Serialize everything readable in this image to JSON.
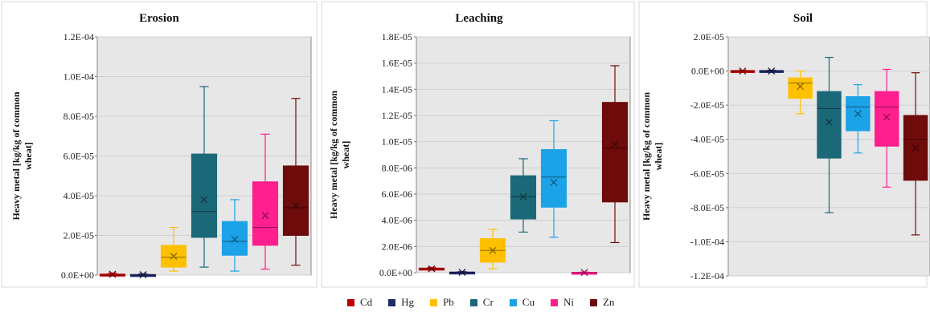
{
  "chart_data": [
    {
      "type": "box",
      "title": "Erosion",
      "ylabel": "Heavy metal [kg/kg of common wheat]",
      "ylim": [
        0,
        0.00012
      ],
      "yticks": [
        0,
        2e-05,
        4e-05,
        6e-05,
        8e-05,
        0.0001,
        0.00012
      ],
      "ytick_labels": [
        "0.0E+00",
        "2.0E-05",
        "4.0E-05",
        "6.0E-05",
        "8.0E-05",
        "1.0E-04",
        "1.2E-04"
      ],
      "grid": true,
      "series": [
        {
          "name": "Cd",
          "min": 0,
          "q1": 0,
          "median": 0,
          "q3": 5e-07,
          "max": 1e-06,
          "mean": 4e-07
        },
        {
          "name": "Hg",
          "min": 0,
          "q1": 0,
          "median": 0,
          "q3": 3e-07,
          "max": 6e-07,
          "mean": 2e-07
        },
        {
          "name": "Pb",
          "min": 2e-06,
          "q1": 4e-06,
          "median": 9e-06,
          "q3": 1.5e-05,
          "max": 2.4e-05,
          "mean": 9.5e-06
        },
        {
          "name": "Cr",
          "min": 4e-06,
          "q1": 1.9e-05,
          "median": 3.2e-05,
          "q3": 6.1e-05,
          "max": 9.5e-05,
          "mean": 3.8e-05
        },
        {
          "name": "Cu",
          "min": 2e-06,
          "q1": 1e-05,
          "median": 1.7e-05,
          "q3": 2.7e-05,
          "max": 3.8e-05,
          "mean": 1.8e-05
        },
        {
          "name": "Ni",
          "min": 3e-06,
          "q1": 1.5e-05,
          "median": 2.4e-05,
          "q3": 4.7e-05,
          "max": 7.1e-05,
          "mean": 3e-05
        },
        {
          "name": "Zn",
          "min": 5e-06,
          "q1": 2e-05,
          "median": 3.4e-05,
          "q3": 5.5e-05,
          "max": 8.9e-05,
          "mean": 3.5e-05
        }
      ]
    },
    {
      "type": "box",
      "title": "Leaching",
      "ylabel": "Heavy metal [kg/kg of common wheat]",
      "ylim": [
        0,
        1.8e-05
      ],
      "yticks": [
        0,
        2e-06,
        4e-06,
        6e-06,
        8e-06,
        1e-05,
        1.2e-05,
        1.4e-05,
        1.6e-05,
        1.8e-05
      ],
      "ytick_labels": [
        "0.0E+00",
        "2.0E-06",
        "4.0E-06",
        "6.0E-06",
        "8.0E-06",
        "1.0E-05",
        "1.2E-05",
        "1.4E-05",
        "1.6E-05",
        "1.8E-05"
      ],
      "grid": true,
      "series": [
        {
          "name": "Cd",
          "min": 2e-07,
          "q1": 2.5e-07,
          "median": 3e-07,
          "q3": 3.5e-07,
          "max": 4e-07,
          "mean": 3e-07
        },
        {
          "name": "Hg",
          "min": 0,
          "q1": 0,
          "median": 2e-08,
          "q3": 5e-08,
          "max": 8e-08,
          "mean": 3e-08
        },
        {
          "name": "Pb",
          "min": 3e-07,
          "q1": 8e-07,
          "median": 1.7e-06,
          "q3": 2.6e-06,
          "max": 3.3e-06,
          "mean": 1.7e-06
        },
        {
          "name": "Cr",
          "min": 3.1e-06,
          "q1": 4.1e-06,
          "median": 5.8e-06,
          "q3": 7.4e-06,
          "max": 8.7e-06,
          "mean": 5.8e-06
        },
        {
          "name": "Cu",
          "min": 2.7e-06,
          "q1": 5e-06,
          "median": 7.3e-06,
          "q3": 9.4e-06,
          "max": 1.16e-05,
          "mean": 6.9e-06
        },
        {
          "name": "Ni",
          "min": 0,
          "q1": 0,
          "median": 0,
          "q3": 3e-08,
          "max": 5e-08,
          "mean": 2e-08
        },
        {
          "name": "Zn",
          "min": 2.3e-06,
          "q1": 5.4e-06,
          "median": 9.5e-06,
          "q3": 1.3e-05,
          "max": 1.58e-05,
          "mean": 9.8e-06
        }
      ]
    },
    {
      "type": "box",
      "title": "Soil",
      "ylabel": "Heavy metal [kg/kg of common wheat]",
      "ylim": [
        -0.00012,
        2e-05
      ],
      "yticks": [
        -0.00012,
        -0.0001,
        -8e-05,
        -6e-05,
        -4e-05,
        -2e-05,
        0,
        2e-05
      ],
      "ytick_labels": [
        "-1.2E-04",
        "-1.0E-04",
        "-8.0E-05",
        "-6.0E-05",
        "-4.0E-05",
        "-2.0E-05",
        "0.0E+00",
        "2.0E-05"
      ],
      "grid": true,
      "series": [
        {
          "name": "Cd",
          "min": -5e-07,
          "q1": -3e-07,
          "median": 0,
          "q3": 3e-07,
          "max": 5e-07,
          "mean": 0
        },
        {
          "name": "Hg",
          "min": -5e-07,
          "q1": -3e-07,
          "median": 0,
          "q3": 3e-07,
          "max": 5e-07,
          "mean": 0
        },
        {
          "name": "Pb",
          "min": -2.5e-05,
          "q1": -1.6e-05,
          "median": -7e-06,
          "q3": -4e-06,
          "max": 0,
          "mean": -9e-06
        },
        {
          "name": "Cr",
          "min": -8.3e-05,
          "q1": -5.1e-05,
          "median": -2.2e-05,
          "q3": -1.2e-05,
          "max": 8e-06,
          "mean": -3e-05
        },
        {
          "name": "Cu",
          "min": -4.8e-05,
          "q1": -3.5e-05,
          "median": -2.1e-05,
          "q3": -1.5e-05,
          "max": -8e-06,
          "mean": -2.5e-05
        },
        {
          "name": "Ni",
          "min": -6.8e-05,
          "q1": -4.4e-05,
          "median": -2.1e-05,
          "q3": -1.2e-05,
          "max": 1e-06,
          "mean": -2.7e-05
        },
        {
          "name": "Zn",
          "min": -9.6e-05,
          "q1": -6.4e-05,
          "median": -4e-05,
          "q3": -2.6e-05,
          "max": -1e-06,
          "mean": -4.5e-05
        }
      ]
    }
  ],
  "legend": {
    "items": [
      {
        "label": "Cd",
        "color": "#c00000"
      },
      {
        "label": "Hg",
        "color": "#1f2a6b"
      },
      {
        "label": "Pb",
        "color": "#ffc000"
      },
      {
        "label": "Cr",
        "color": "#1b6878"
      },
      {
        "label": "Cu",
        "color": "#1ca2e6"
      },
      {
        "label": "Ni",
        "color": "#ff1f8e"
      },
      {
        "label": "Zn",
        "color": "#6e0b0b"
      }
    ]
  }
}
